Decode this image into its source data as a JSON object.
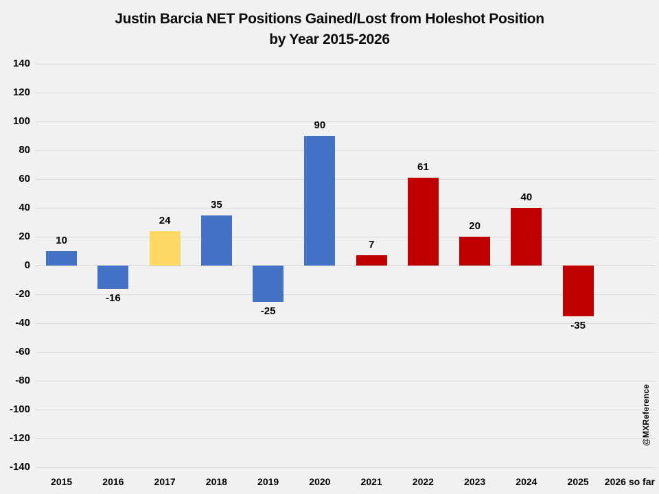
{
  "chart_data": {
    "type": "bar",
    "title": "Justin Barcia NET Positions Gained/Lost from Holeshot Position by Year 2015-2026",
    "title_lines": [
      "Justin Barcia NET Positions Gained/Lost from Holeshot Position",
      "by Year 2015-2026"
    ],
    "categories": [
      "2015",
      "2016",
      "2017",
      "2018",
      "2019",
      "2020",
      "2021",
      "2022",
      "2023",
      "2024",
      "2025",
      "2026 so far"
    ],
    "values": [
      10,
      -16,
      24,
      35,
      -25,
      90,
      7,
      61,
      20,
      40,
      -35,
      null
    ],
    "bar_colors": [
      "#4472C4",
      "#4472C4",
      "#FFD966",
      "#4472C4",
      "#4472C4",
      "#4472C4",
      "#C00000",
      "#C00000",
      "#C00000",
      "#C00000",
      "#C00000",
      null
    ],
    "xlabel": "",
    "ylabel": "",
    "ylim": [
      -140,
      140
    ],
    "ytick_step": 20,
    "grid": true,
    "legend": "none",
    "watermark": "@MXReference",
    "colors": {
      "blue": "#4472C4",
      "yellow": "#FFD966",
      "red": "#C00000",
      "background": "#F1F1F1",
      "gridline": "#D9D9D9",
      "text": "#000000"
    }
  }
}
